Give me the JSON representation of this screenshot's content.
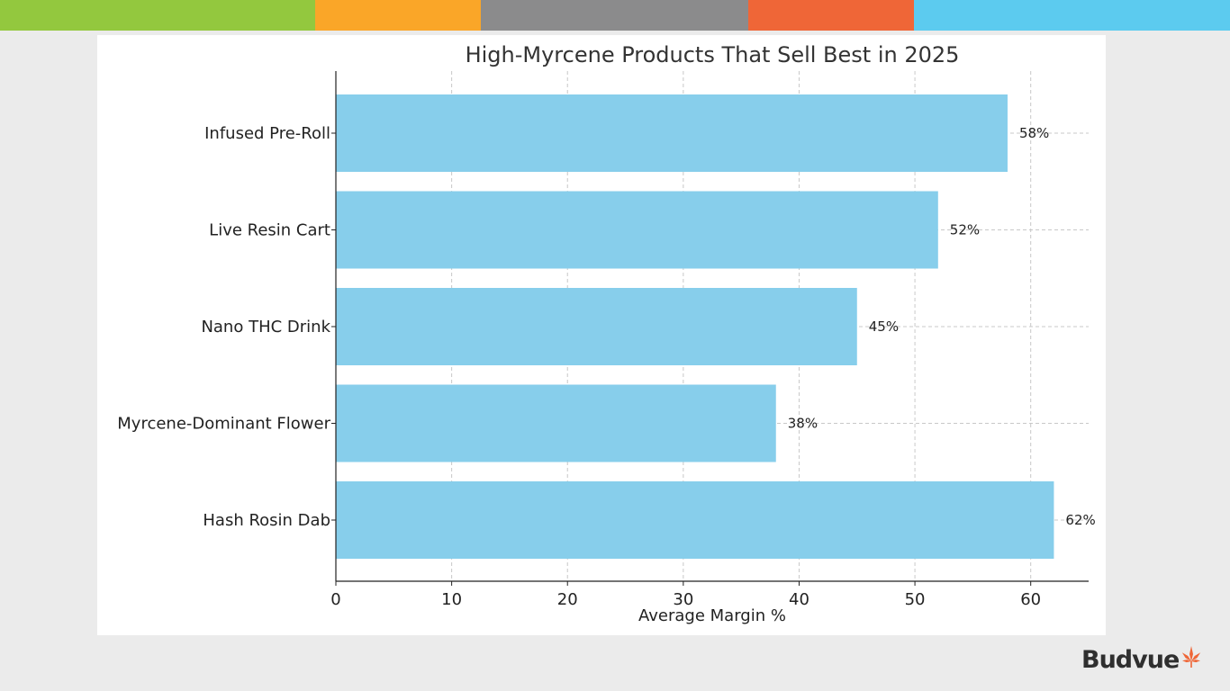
{
  "colors": {
    "stripe": [
      "#93c83e",
      "#faa628",
      "#8b8b8c",
      "#ef6637",
      "#5ccbef"
    ],
    "bar": "#87ceeb",
    "grid": "#c8c8c8",
    "axis": "#222222",
    "text": "#222222",
    "title": "#333333",
    "logo_text": "#2f2f2f",
    "logo_leaf": "#ef6637"
  },
  "logo": {
    "text": "Budvue",
    "icon": "cannabis-leaf-icon"
  },
  "chart_data": {
    "type": "bar",
    "orientation": "horizontal",
    "title": "High-Myrcene Products That Sell Best in 2025",
    "xlabel": "Average Margin %",
    "ylabel": "",
    "xlim": [
      0,
      65
    ],
    "xticks": [
      0,
      10,
      20,
      30,
      40,
      50,
      60
    ],
    "grid": true,
    "categories": [
      "Infused Pre-Roll",
      "Live Resin Cart",
      "Nano THC Drink",
      "Myrcene-Dominant Flower",
      "Hash Rosin Dab"
    ],
    "values": [
      58,
      52,
      45,
      38,
      62
    ],
    "value_labels": [
      "58%",
      "52%",
      "45%",
      "38%",
      "62%"
    ]
  }
}
